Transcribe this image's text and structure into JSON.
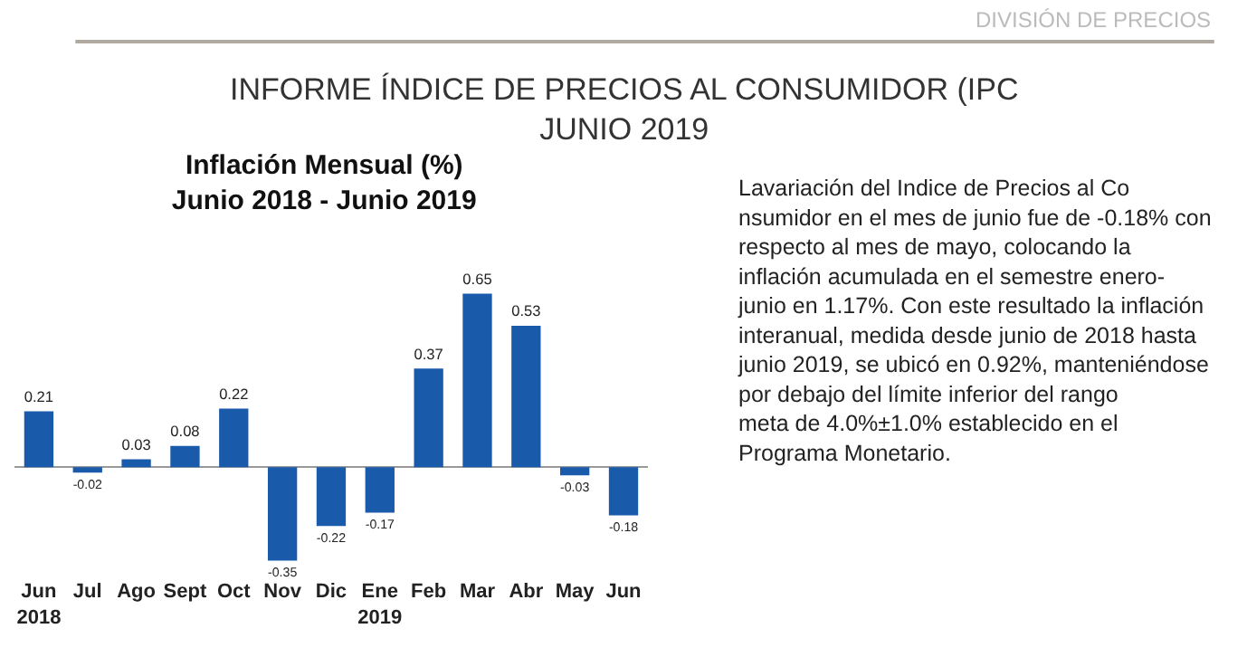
{
  "chart_data": {
    "type": "bar",
    "title": "Inflación Mensual (%)\nJunio 2018 - Junio 2019",
    "categories": [
      "Jun\n2018",
      "Jul",
      "Ago",
      "Sept",
      "Oct",
      "Nov",
      "Dic",
      "Ene\n2019",
      "Feb",
      "Mar",
      "Abr",
      "May",
      "Jun"
    ],
    "values": [
      0.21,
      -0.02,
      0.03,
      0.08,
      0.22,
      -0.35,
      -0.22,
      -0.17,
      0.37,
      0.65,
      0.53,
      -0.03,
      -0.18
    ],
    "color": "#1a5aab",
    "data_labels": true,
    "annotations": [
      "DIVISIÓN DE PRECIOS",
      "INFORME ÍNDICE DE PRECIOS AL CONSUMIDOR (IPC\nJUNIO 2019",
      "Lavariación del Indice de Precios al Co\nnsumidor en el mes de junio fue de -0.18% con\nrespecto al mes de mayo, colocando la\ninflación acumulada en el semestre enero-\njunio en 1.17%. Con este resultado la inflación\ninteranual, medida desde junio de 2018 hasta\njunio 2019, se ubicó en 0.92%, manteniéndose\npor debajo del límite inferior del rango\nmeta de 4.0%±1.0% establecido en el\nPrograma Monetario."
    ]
  }
}
